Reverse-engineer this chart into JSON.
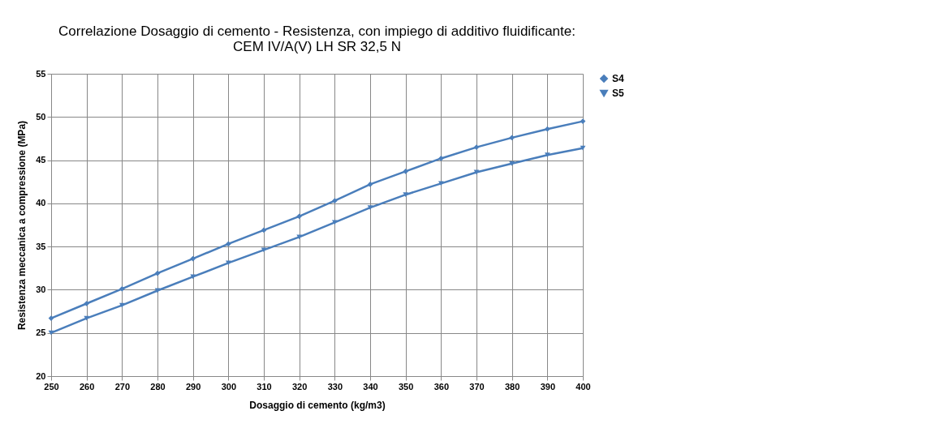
{
  "chart_data": {
    "type": "line",
    "title": [
      "Correlazione Dosaggio di cemento  - Resistenza, con impiego di additivo fluidificante:",
      "CEM IV/A(V)  LH SR 32,5 N"
    ],
    "xlabel": "Dosaggio di cemento (kg/m3)",
    "ylabel": "Resistenza  meccanica a compressione  (MPa)",
    "x": [
      250,
      260,
      270,
      280,
      290,
      300,
      310,
      320,
      330,
      340,
      350,
      360,
      370,
      380,
      390,
      400
    ],
    "series": [
      {
        "name": "S4",
        "color": "#4a7ebb",
        "marker": "diamond",
        "values": [
          26.7,
          28.4,
          30.1,
          31.9,
          33.6,
          35.3,
          36.9,
          38.5,
          40.3,
          42.2,
          43.7,
          45.2,
          46.5,
          47.6,
          48.6,
          49.5
        ]
      },
      {
        "name": "S5",
        "color": "#4a7ebb",
        "marker": "triangle-down",
        "values": [
          25.0,
          26.7,
          28.2,
          29.9,
          31.5,
          33.1,
          34.6,
          36.1,
          37.8,
          39.5,
          41.0,
          42.3,
          43.6,
          44.6,
          45.6,
          46.4
        ]
      }
    ],
    "xlim": [
      250,
      400
    ],
    "xticks": [
      250,
      260,
      270,
      280,
      290,
      300,
      310,
      320,
      330,
      340,
      350,
      360,
      370,
      380,
      390,
      400
    ],
    "ylim": [
      20,
      55
    ],
    "yticks": [
      20,
      25,
      30,
      35,
      40,
      45,
      50,
      55
    ],
    "grid": true,
    "legend": "right",
    "line_style": "solid"
  }
}
